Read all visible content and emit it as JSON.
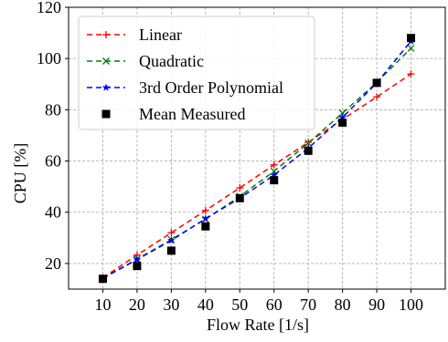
{
  "chart_data": {
    "type": "line",
    "xlabel": "Flow Rate [1/s]",
    "ylabel": "CPU [%]",
    "xlim": [
      0,
      110
    ],
    "ylim": [
      10,
      120
    ],
    "x_ticks": [
      10,
      20,
      30,
      40,
      50,
      60,
      70,
      80,
      90,
      100
    ],
    "y_ticks": [
      20,
      40,
      60,
      80,
      100,
      120
    ],
    "grid": true,
    "legend_position": "top-left",
    "x": [
      10,
      20,
      30,
      40,
      50,
      60,
      70,
      80,
      90,
      100
    ],
    "series": [
      {
        "name": "Linear",
        "color": "#ff0000",
        "marker": "plus",
        "line": "dashed",
        "values": [
          14.4,
          23.3,
          32.0,
          40.7,
          49.5,
          58.5,
          67.3,
          76.2,
          85.0,
          94.0
        ]
      },
      {
        "name": "Quadratic",
        "color": "#008000",
        "marker": "x",
        "line": "dashed",
        "values": [
          14.3,
          21.7,
          29.3,
          37.3,
          46.2,
          56.0,
          67.0,
          78.7,
          90.7,
          104.0
        ]
      },
      {
        "name": "3rd Order Polynomial",
        "color": "#0000ff",
        "marker": "star",
        "line": "dashed",
        "values": [
          14.2,
          21.5,
          29.0,
          37.5,
          45.5,
          54.5,
          65.0,
          77.0,
          90.5,
          106.8
        ]
      },
      {
        "name": "Mean Measured",
        "color": "#000000",
        "marker": "square",
        "line": "none",
        "values": [
          14.0,
          19.0,
          25.0,
          34.5,
          45.5,
          52.5,
          64.0,
          75.0,
          90.5,
          108.0
        ]
      }
    ]
  }
}
